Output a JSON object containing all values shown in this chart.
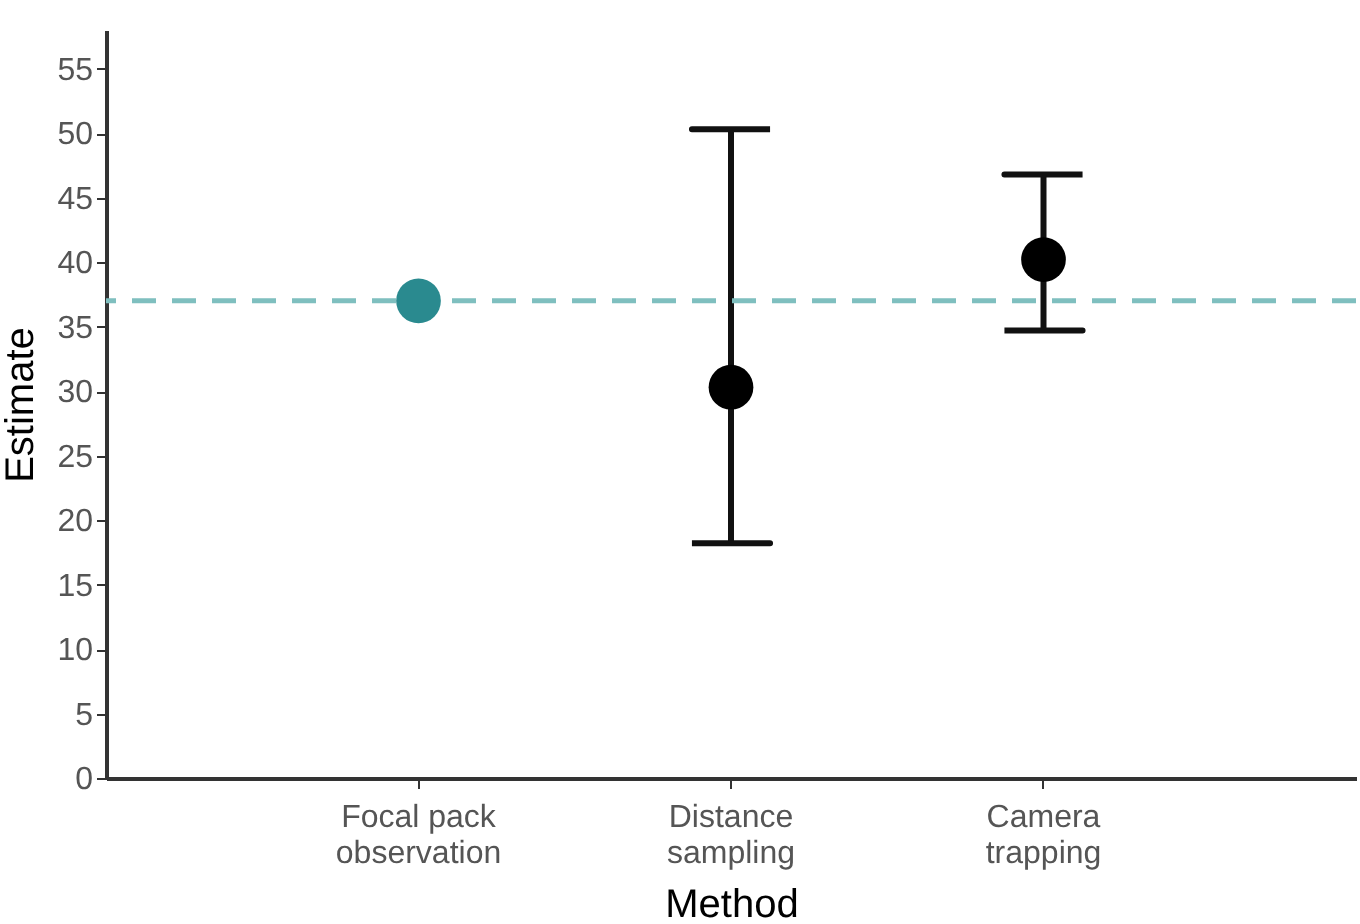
{
  "chart_data": {
    "type": "scatter",
    "xlabel": "Method",
    "ylabel": "Estimate",
    "categories": [
      "Focal pack observation",
      "Distance sampling",
      "Camera trapping"
    ],
    "values": [
      37,
      30.3,
      40.2
    ],
    "colors": [
      "#2a8a8f",
      "#000000",
      "#000000"
    ],
    "errors": [
      null,
      [
        18.2,
        50.3
      ],
      [
        34.7,
        46.8
      ]
    ],
    "ylim": [
      0,
      58
    ],
    "yticks": [
      0,
      5,
      10,
      15,
      20,
      25,
      30,
      35,
      40,
      45,
      50,
      55
    ],
    "ref_lines": [
      {
        "axis": "y",
        "value": 37,
        "color": "#7fbfbf",
        "line_style": "dashed"
      }
    ],
    "marker": "circle",
    "grid": false
  }
}
